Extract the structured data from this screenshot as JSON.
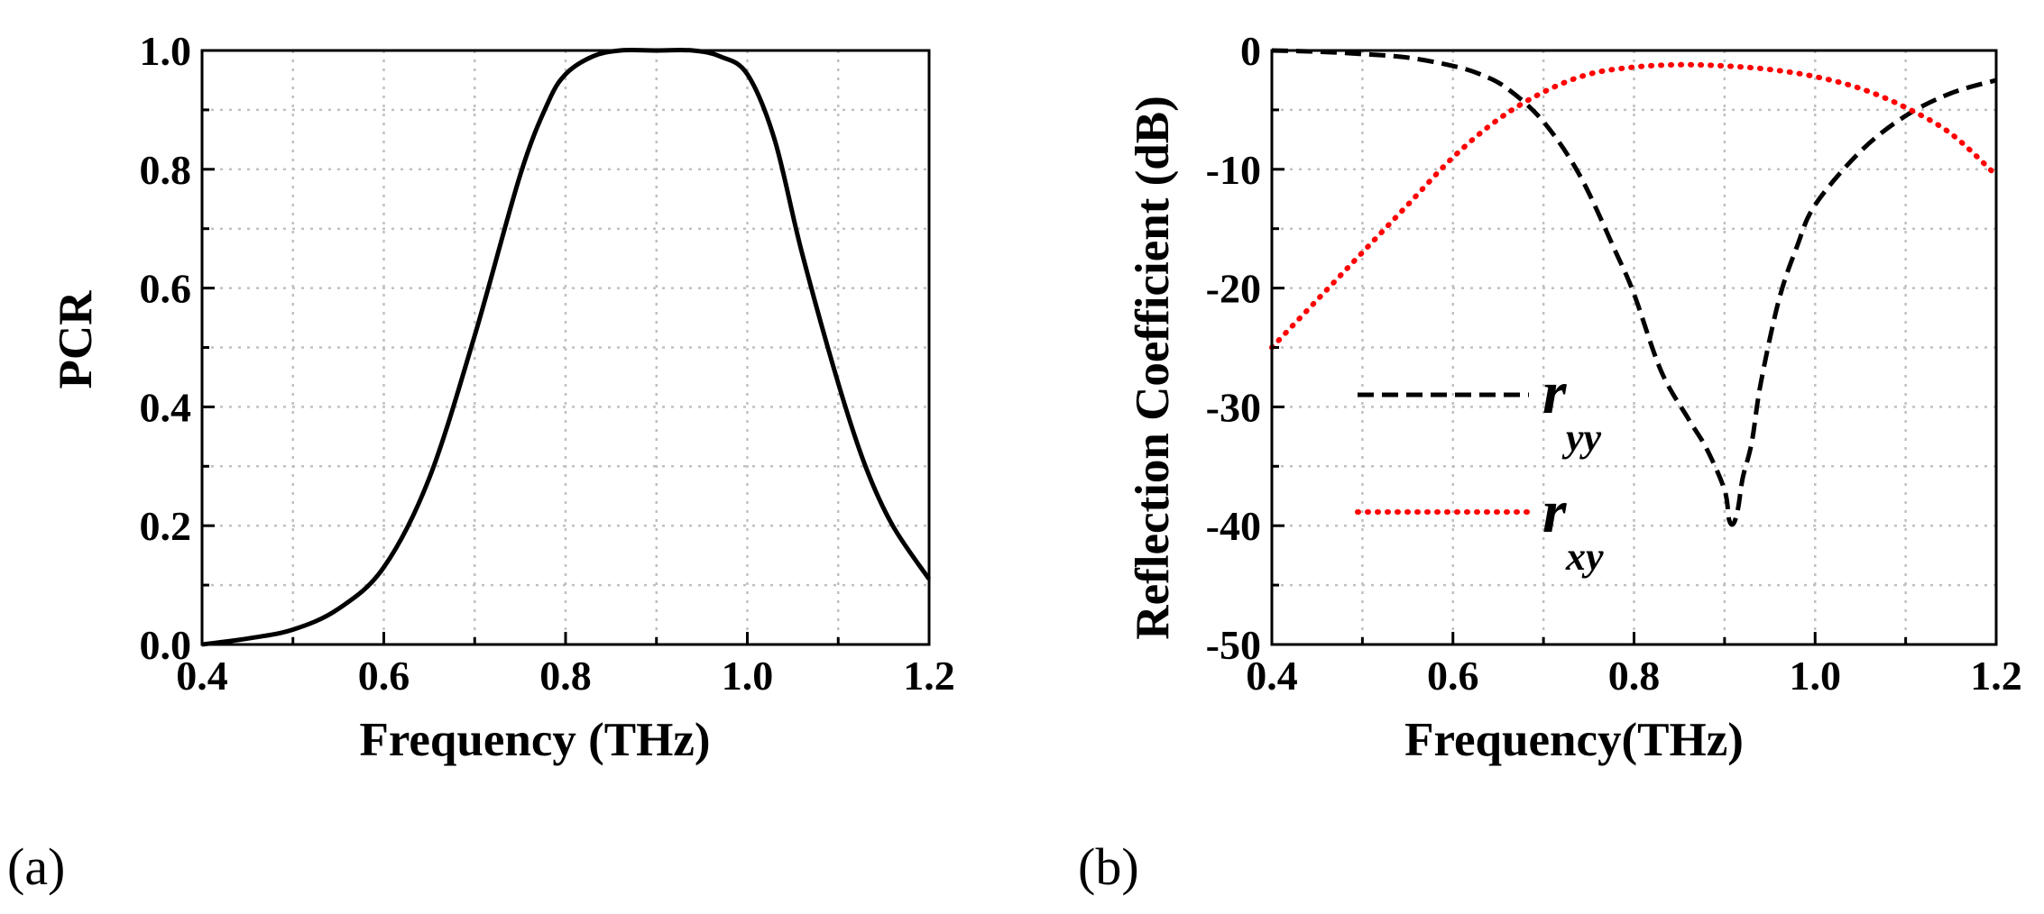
{
  "colors": {
    "axis": "#000000",
    "grid": "#c0c0c0",
    "ryy": "#000000",
    "rxy": "#ff0000",
    "pcr": "#000000"
  },
  "chart_data": [
    {
      "panel": "(a)",
      "type": "line",
      "title": "",
      "xlabel": "Frequency (THz)",
      "ylabel": "PCR",
      "xlim": [
        0.4,
        1.2
      ],
      "ylim": [
        0.0,
        1.0
      ],
      "xticks": [
        0.4,
        0.6,
        0.8,
        1.0,
        1.2
      ],
      "yticks": [
        0.0,
        0.2,
        0.4,
        0.6,
        0.8,
        1.0
      ],
      "xtick_labels": [
        "0.4",
        "0.6",
        "0.8",
        "1.0",
        "1.2"
      ],
      "ytick_labels": [
        "0.0",
        "0.2",
        "0.4",
        "0.6",
        "0.8",
        "1.0"
      ],
      "grid": true,
      "series": [
        {
          "name": "PCR",
          "style": "solid",
          "color": "#000000",
          "x": [
            0.4,
            0.45,
            0.5,
            0.55,
            0.6,
            0.65,
            0.7,
            0.75,
            0.78,
            0.8,
            0.83,
            0.86,
            0.9,
            0.94,
            0.97,
            1.0,
            1.03,
            1.06,
            1.1,
            1.13,
            1.16,
            1.2
          ],
          "y": [
            0.0,
            0.01,
            0.025,
            0.06,
            0.13,
            0.28,
            0.52,
            0.79,
            0.91,
            0.96,
            0.99,
            1.0,
            1.0,
            1.0,
            0.99,
            0.96,
            0.85,
            0.66,
            0.44,
            0.3,
            0.2,
            0.11
          ]
        }
      ]
    },
    {
      "panel": "(b)",
      "type": "line",
      "title": "",
      "xlabel": "Frequency(THz)",
      "ylabel": "Reflection Coefficient (dB)",
      "xlim": [
        0.4,
        1.2
      ],
      "ylim": [
        -50,
        0
      ],
      "xticks": [
        0.4,
        0.6,
        0.8,
        1.0,
        1.2
      ],
      "yticks": [
        0,
        -10,
        -20,
        -30,
        -40,
        -50
      ],
      "xtick_labels": [
        "0.4",
        "0.6",
        "0.8",
        "1.0",
        "1.2"
      ],
      "ytick_labels": [
        "0",
        "-10",
        "-20",
        "-30",
        "-40",
        "-50"
      ],
      "grid": true,
      "legend_position": "center-left",
      "series": [
        {
          "name": "r_yy",
          "symbol": "r",
          "subscript": "yy",
          "style": "dashed",
          "color": "#000000",
          "x": [
            0.4,
            0.45,
            0.5,
            0.55,
            0.6,
            0.63,
            0.66,
            0.7,
            0.74,
            0.78,
            0.8,
            0.83,
            0.86,
            0.88,
            0.9,
            0.905,
            0.91,
            0.915,
            0.92,
            0.93,
            0.94,
            0.96,
            0.98,
            1.0,
            1.05,
            1.1,
            1.15,
            1.2
          ],
          "y": [
            0.0,
            -0.1,
            -0.3,
            -0.6,
            -1.3,
            -2.0,
            -3.2,
            -6.0,
            -10.5,
            -17.0,
            -20.5,
            -27.0,
            -31.0,
            -33.5,
            -37.0,
            -39.5,
            -39.8,
            -38.5,
            -36.0,
            -33.0,
            -28.0,
            -21.0,
            -16.5,
            -13.0,
            -8.5,
            -5.5,
            -3.6,
            -2.5
          ]
        },
        {
          "name": "r_xy",
          "symbol": "r",
          "subscript": "xy",
          "style": "dotted",
          "color": "#ff0000",
          "x": [
            0.4,
            0.45,
            0.5,
            0.55,
            0.6,
            0.65,
            0.7,
            0.75,
            0.8,
            0.85,
            0.9,
            0.95,
            1.0,
            1.05,
            1.1,
            1.15,
            1.2
          ],
          "y": [
            -25.0,
            -21.0,
            -17.0,
            -13.0,
            -9.0,
            -5.8,
            -3.5,
            -2.0,
            -1.4,
            -1.2,
            -1.3,
            -1.6,
            -2.2,
            -3.2,
            -4.8,
            -7.0,
            -10.5
          ]
        }
      ]
    }
  ]
}
